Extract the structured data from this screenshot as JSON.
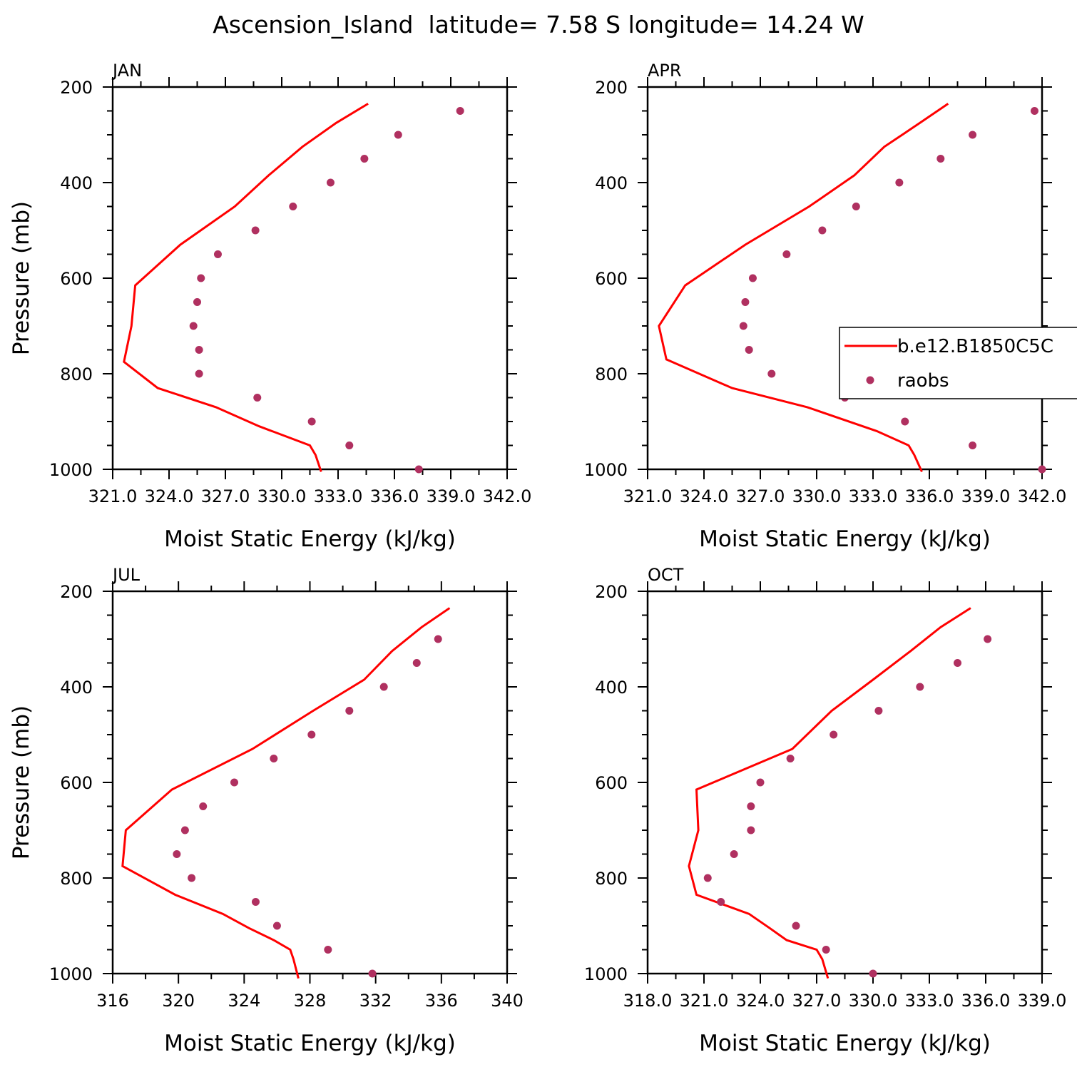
{
  "title": "Ascension_Island  latitude= 7.58 S longitude= 14.24 W",
  "colors": {
    "model": "#ff0000",
    "obs": "#b03060",
    "axis": "#000000"
  },
  "legend": {
    "model_label": "b.e12.B1850C5C",
    "obs_label": "raobs",
    "placement": "right-middle of APR panel"
  },
  "chart_data": [
    {
      "type": "line+scatter",
      "panel_label": "JAN",
      "xlabel": "Moist Static Energy (kJ/kg)",
      "ylabel": "Pressure (mb)",
      "xlim": [
        321,
        342
      ],
      "ylim": [
        1000,
        200
      ],
      "x_ticks": [
        321,
        324,
        327,
        330,
        333,
        336,
        339,
        342
      ],
      "x_tick_labels": [
        "321.0",
        "324.0",
        "327.0",
        "330.0",
        "333.0",
        "336.0",
        "339.0",
        "342.0"
      ],
      "y_ticks": [
        200,
        400,
        600,
        800,
        1000
      ],
      "y_tick_labels": [
        "200",
        "400",
        "600",
        "800",
        "1000"
      ],
      "model": {
        "name": "b.e12.B1850C5C",
        "pressure": [
          235,
          275,
          325,
          385,
          450,
          530,
          615,
          700,
          775,
          830,
          870,
          910,
          950,
          970,
          1005
        ],
        "mse": [
          334.6,
          332.9,
          331.1,
          329.3,
          327.5,
          324.6,
          322.2,
          322.0,
          321.6,
          323.4,
          326.5,
          328.8,
          331.5,
          331.8,
          332.1
        ]
      },
      "obs": {
        "name": "raobs",
        "pressure": [
          250,
          300,
          350,
          400,
          450,
          500,
          550,
          600,
          650,
          700,
          750,
          800,
          850,
          900,
          950,
          1000
        ],
        "mse": [
          339.5,
          336.2,
          334.4,
          332.6,
          330.6,
          328.6,
          326.6,
          325.7,
          325.5,
          325.3,
          325.6,
          325.6,
          328.7,
          331.6,
          333.6,
          337.3
        ]
      }
    },
    {
      "type": "line+scatter",
      "panel_label": "APR",
      "xlabel": "Moist Static Energy (kJ/kg)",
      "ylabel": "",
      "xlim": [
        321,
        342
      ],
      "ylim": [
        1000,
        200
      ],
      "x_ticks": [
        321,
        324,
        327,
        330,
        333,
        336,
        339,
        342
      ],
      "x_tick_labels": [
        "321.0",
        "324.0",
        "327.0",
        "330.0",
        "333.0",
        "336.0",
        "339.0",
        "342.0"
      ],
      "y_ticks": [
        200,
        400,
        600,
        800,
        1000
      ],
      "y_tick_labels": [
        "200",
        "400",
        "600",
        "800",
        "1000"
      ],
      "model": {
        "name": "b.e12.B1850C5C",
        "pressure": [
          235,
          275,
          325,
          385,
          450,
          530,
          615,
          700,
          770,
          830,
          870,
          920,
          950,
          970,
          1005
        ],
        "mse": [
          337.0,
          335.5,
          333.6,
          332.0,
          329.6,
          326.2,
          323.0,
          321.6,
          322.0,
          325.5,
          329.5,
          333.2,
          334.9,
          335.2,
          335.6
        ]
      },
      "obs": {
        "name": "raobs",
        "pressure": [
          250,
          300,
          350,
          400,
          450,
          500,
          550,
          600,
          650,
          700,
          750,
          800,
          850,
          900,
          950,
          1000
        ],
        "mse": [
          341.6,
          338.3,
          336.6,
          334.4,
          332.1,
          330.3,
          328.4,
          326.6,
          326.2,
          326.1,
          326.4,
          327.6,
          331.5,
          334.7,
          338.3,
          342.0
        ]
      }
    },
    {
      "type": "line+scatter",
      "panel_label": "JUL",
      "xlabel": "Moist Static Energy (kJ/kg)",
      "ylabel": "Pressure (mb)",
      "xlim": [
        316,
        340
      ],
      "ylim": [
        1000,
        200
      ],
      "x_ticks": [
        316,
        320,
        324,
        328,
        332,
        336,
        340
      ],
      "x_tick_labels": [
        "316",
        "320",
        "324",
        "328",
        "332",
        "336",
        "340"
      ],
      "y_ticks": [
        200,
        400,
        600,
        800,
        1000
      ],
      "y_tick_labels": [
        "200",
        "400",
        "600",
        "800",
        "1000"
      ],
      "model": {
        "name": "b.e12.B1850C5C",
        "pressure": [
          235,
          275,
          325,
          385,
          450,
          530,
          615,
          700,
          775,
          835,
          875,
          905,
          930,
          950,
          970,
          1010
        ],
        "mse": [
          336.5,
          334.8,
          333.0,
          331.3,
          328.2,
          324.5,
          319.6,
          316.8,
          316.6,
          319.8,
          322.7,
          324.3,
          325.8,
          326.8,
          327.0,
          327.3
        ]
      },
      "obs": {
        "name": "raobs",
        "pressure": [
          300,
          350,
          400,
          450,
          500,
          550,
          600,
          650,
          700,
          750,
          800,
          850,
          900,
          950,
          1000
        ],
        "mse": [
          335.8,
          334.5,
          332.5,
          330.4,
          328.1,
          325.8,
          323.4,
          321.5,
          320.4,
          319.9,
          320.8,
          324.7,
          326.0,
          329.1,
          331.8
        ]
      }
    },
    {
      "type": "line+scatter",
      "panel_label": "OCT",
      "xlabel": "Moist Static Energy (kJ/kg)",
      "ylabel": "",
      "xlim": [
        318,
        339
      ],
      "ylim": [
        1000,
        200
      ],
      "x_ticks": [
        318,
        321,
        324,
        327,
        330,
        333,
        336,
        339
      ],
      "x_tick_labels": [
        "318.0",
        "321.0",
        "324.0",
        "327.0",
        "330.0",
        "333.0",
        "336.0",
        "339.0"
      ],
      "y_ticks": [
        200,
        400,
        600,
        800,
        1000
      ],
      "y_tick_labels": [
        "200",
        "400",
        "600",
        "800",
        "1000"
      ],
      "model": {
        "name": "b.e12.B1850C5C",
        "pressure": [
          235,
          275,
          325,
          385,
          450,
          530,
          615,
          700,
          775,
          835,
          875,
          905,
          930,
          950,
          970,
          1010
        ],
        "mse": [
          335.2,
          333.6,
          332.0,
          330.0,
          327.8,
          325.7,
          320.6,
          320.7,
          320.2,
          320.6,
          323.4,
          324.5,
          325.4,
          327.0,
          327.3,
          327.6
        ]
      },
      "obs": {
        "name": "raobs",
        "pressure": [
          300,
          350,
          400,
          450,
          500,
          550,
          600,
          650,
          700,
          750,
          800,
          850,
          900,
          950,
          1000
        ],
        "mse": [
          336.1,
          334.5,
          332.5,
          330.3,
          327.9,
          325.6,
          324.0,
          323.5,
          323.5,
          322.6,
          321.2,
          321.9,
          325.9,
          327.5,
          330.0
        ]
      }
    }
  ]
}
